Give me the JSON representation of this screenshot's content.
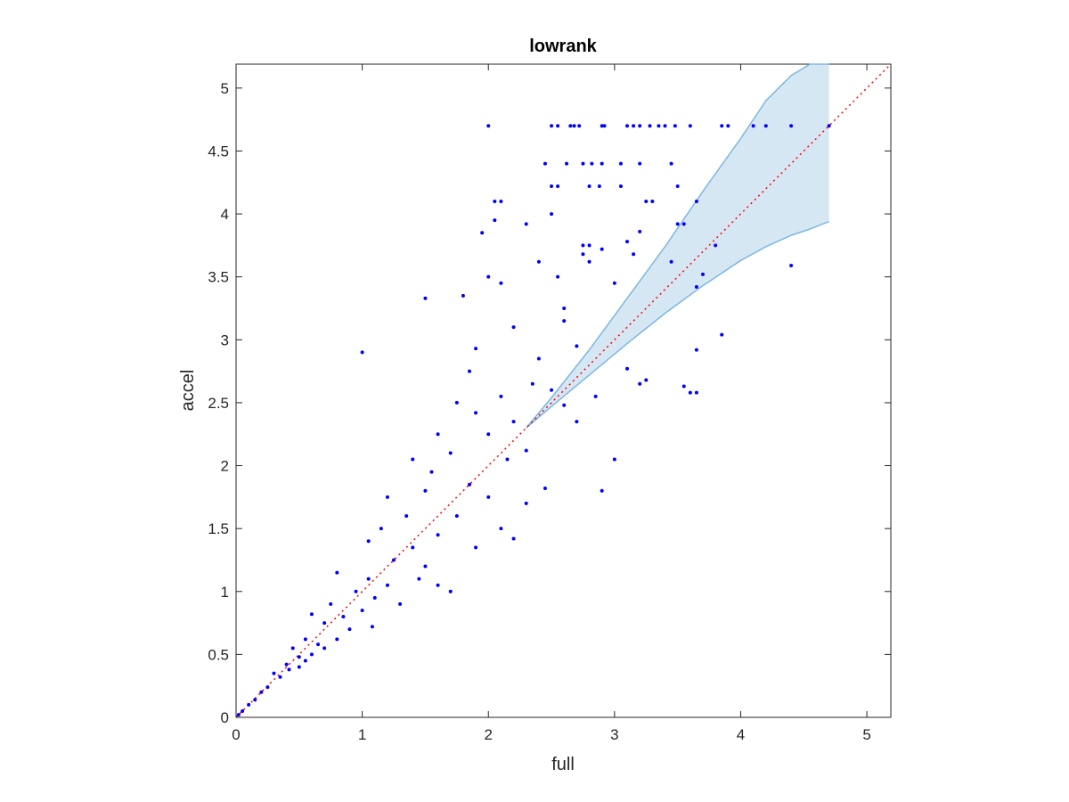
{
  "chart_data": {
    "type": "scatter",
    "title": "lowrank",
    "xlabel": "full",
    "ylabel": "accel",
    "xlim": [
      0,
      5.19
    ],
    "ylim": [
      0,
      5.19
    ],
    "xticks": [
      0,
      1,
      2,
      3,
      4,
      5
    ],
    "yticks": [
      0,
      0.5,
      1,
      1.5,
      2,
      2.5,
      3,
      3.5,
      4,
      4.5,
      5
    ],
    "xtick_labels": [
      "0",
      "1",
      "2",
      "3",
      "4",
      "5"
    ],
    "ytick_labels": [
      "0",
      "0.5",
      "1",
      "1.5",
      "2",
      "2.5",
      "3",
      "3.5",
      "4",
      "4.5",
      "5"
    ],
    "grid": false,
    "colors": {
      "points": "#0000ff",
      "band_fill": "#d6e7f4",
      "band_edge": "#7db7e0",
      "reference_line": "#ff0000",
      "axes": "#262626"
    },
    "reference_line": {
      "style": "dotted",
      "x": [
        0,
        5.19
      ],
      "y": [
        0,
        5.19
      ]
    },
    "band": {
      "x": [
        2.3,
        2.5,
        2.8,
        3.1,
        3.4,
        3.7,
        4.0,
        4.2,
        4.4,
        4.55,
        4.7
      ],
      "upper": [
        2.3,
        2.54,
        2.92,
        3.33,
        3.74,
        4.18,
        4.6,
        4.9,
        5.1,
        5.19,
        5.19
      ],
      "lower": [
        2.3,
        2.47,
        2.72,
        2.97,
        3.21,
        3.43,
        3.63,
        3.74,
        3.83,
        3.88,
        3.94
      ]
    },
    "series": [
      {
        "points": [
          [
            2.0,
            4.7
          ],
          [
            2.5,
            4.7
          ],
          [
            2.55,
            4.7
          ],
          [
            2.65,
            4.7
          ],
          [
            2.68,
            4.7
          ],
          [
            2.72,
            4.7
          ],
          [
            2.9,
            4.7
          ],
          [
            2.92,
            4.7
          ],
          [
            3.1,
            4.7
          ],
          [
            3.15,
            4.7
          ],
          [
            3.2,
            4.7
          ],
          [
            3.28,
            4.7
          ],
          [
            3.35,
            4.7
          ],
          [
            3.4,
            4.7
          ],
          [
            3.48,
            4.7
          ],
          [
            3.6,
            4.7
          ],
          [
            3.85,
            4.7
          ],
          [
            3.9,
            4.7
          ],
          [
            4.1,
            4.7
          ],
          [
            4.2,
            4.7
          ],
          [
            4.4,
            4.7
          ],
          [
            4.7,
            4.7
          ],
          [
            2.45,
            4.4
          ],
          [
            2.62,
            4.4
          ],
          [
            2.75,
            4.4
          ],
          [
            2.82,
            4.4
          ],
          [
            2.9,
            4.4
          ],
          [
            3.05,
            4.4
          ],
          [
            3.2,
            4.4
          ],
          [
            3.45,
            4.4
          ],
          [
            2.5,
            4.22
          ],
          [
            2.55,
            4.22
          ],
          [
            2.8,
            4.22
          ],
          [
            2.88,
            4.22
          ],
          [
            3.05,
            4.22
          ],
          [
            3.5,
            4.22
          ],
          [
            2.05,
            4.1
          ],
          [
            2.1,
            4.1
          ],
          [
            3.25,
            4.1
          ],
          [
            3.3,
            4.1
          ],
          [
            3.65,
            4.1
          ],
          [
            1.95,
            3.85
          ],
          [
            2.05,
            3.95
          ],
          [
            2.3,
            3.92
          ],
          [
            2.5,
            4.0
          ],
          [
            2.75,
            3.75
          ],
          [
            2.8,
            3.75
          ],
          [
            2.9,
            3.72
          ],
          [
            3.1,
            3.78
          ],
          [
            3.15,
            3.68
          ],
          [
            3.2,
            3.86
          ],
          [
            3.5,
            3.92
          ],
          [
            3.55,
            3.92
          ],
          [
            3.8,
            3.75
          ],
          [
            1.5,
            3.33
          ],
          [
            1.8,
            3.35
          ],
          [
            2.0,
            3.5
          ],
          [
            2.1,
            3.45
          ],
          [
            2.4,
            3.62
          ],
          [
            2.55,
            3.5
          ],
          [
            2.6,
            3.25
          ],
          [
            2.75,
            3.68
          ],
          [
            2.8,
            3.62
          ],
          [
            3.0,
            3.45
          ],
          [
            3.45,
            3.62
          ],
          [
            3.7,
            3.52
          ],
          [
            4.4,
            3.59
          ],
          [
            3.65,
            3.42
          ],
          [
            3.85,
            3.04
          ],
          [
            3.65,
            2.92
          ],
          [
            3.2,
            2.65
          ],
          [
            3.25,
            2.68
          ],
          [
            3.55,
            2.63
          ],
          [
            3.6,
            2.58
          ],
          [
            3.65,
            2.58
          ],
          [
            3.1,
            2.77
          ],
          [
            2.9,
            1.8
          ],
          [
            3.0,
            2.05
          ],
          [
            1.0,
            2.9
          ],
          [
            1.9,
            2.93
          ],
          [
            2.2,
            3.1
          ],
          [
            2.4,
            2.85
          ],
          [
            2.6,
            3.15
          ],
          [
            2.7,
            2.95
          ],
          [
            2.85,
            2.55
          ],
          [
            1.85,
            2.75
          ],
          [
            2.1,
            2.55
          ],
          [
            2.2,
            2.35
          ],
          [
            2.35,
            2.65
          ],
          [
            2.5,
            2.6
          ],
          [
            2.6,
            2.48
          ],
          [
            2.7,
            2.35
          ],
          [
            1.6,
            2.25
          ],
          [
            1.75,
            2.5
          ],
          [
            1.9,
            2.42
          ],
          [
            2.0,
            2.25
          ],
          [
            2.15,
            2.05
          ],
          [
            2.3,
            2.12
          ],
          [
            2.45,
            1.82
          ],
          [
            1.4,
            2.05
          ],
          [
            1.55,
            1.95
          ],
          [
            1.7,
            2.1
          ],
          [
            1.85,
            1.85
          ],
          [
            2.0,
            1.75
          ],
          [
            2.1,
            1.5
          ],
          [
            2.3,
            1.7
          ],
          [
            1.2,
            1.75
          ],
          [
            1.35,
            1.6
          ],
          [
            1.5,
            1.8
          ],
          [
            1.6,
            1.45
          ],
          [
            1.75,
            1.6
          ],
          [
            1.9,
            1.35
          ],
          [
            2.2,
            1.42
          ],
          [
            1.05,
            1.4
          ],
          [
            1.15,
            1.5
          ],
          [
            1.25,
            1.25
          ],
          [
            1.4,
            1.35
          ],
          [
            1.5,
            1.2
          ],
          [
            1.6,
            1.05
          ],
          [
            1.7,
            1.0
          ],
          [
            0.8,
            1.15
          ],
          [
            0.95,
            1.0
          ],
          [
            1.05,
            1.1
          ],
          [
            1.1,
            0.95
          ],
          [
            1.2,
            1.05
          ],
          [
            1.3,
            0.9
          ],
          [
            1.45,
            1.1
          ],
          [
            0.6,
            0.82
          ],
          [
            0.7,
            0.75
          ],
          [
            0.75,
            0.9
          ],
          [
            0.85,
            0.8
          ],
          [
            0.9,
            0.7
          ],
          [
            1.0,
            0.85
          ],
          [
            1.08,
            0.72
          ],
          [
            0.45,
            0.55
          ],
          [
            0.5,
            0.48
          ],
          [
            0.55,
            0.62
          ],
          [
            0.6,
            0.5
          ],
          [
            0.65,
            0.58
          ],
          [
            0.7,
            0.55
          ],
          [
            0.8,
            0.62
          ],
          [
            0.3,
            0.35
          ],
          [
            0.35,
            0.32
          ],
          [
            0.4,
            0.42
          ],
          [
            0.42,
            0.38
          ],
          [
            0.5,
            0.4
          ],
          [
            0.55,
            0.45
          ],
          [
            0.1,
            0.1
          ],
          [
            0.15,
            0.14
          ],
          [
            0.2,
            0.2
          ],
          [
            0.25,
            0.24
          ],
          [
            0.05,
            0.05
          ],
          [
            0.02,
            0.02
          ]
        ]
      }
    ]
  }
}
